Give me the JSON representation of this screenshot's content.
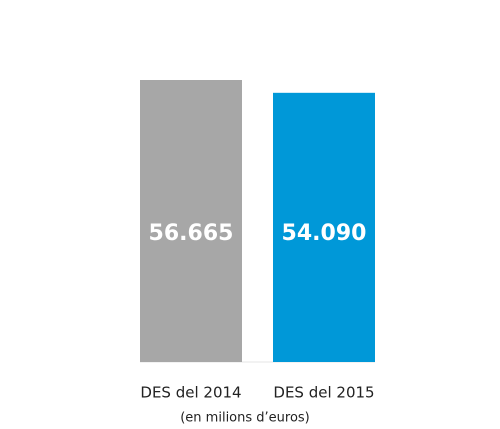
{
  "chart_data": {
    "type": "bar",
    "categories": [
      "DES del 2014",
      "DES del 2015"
    ],
    "values": [
      56665,
      54090
    ],
    "value_labels": [
      "56.665",
      "54.090"
    ],
    "colors": [
      "#a7a7a7",
      "#0098d8"
    ],
    "x_label": "(en milions d’euros)"
  }
}
